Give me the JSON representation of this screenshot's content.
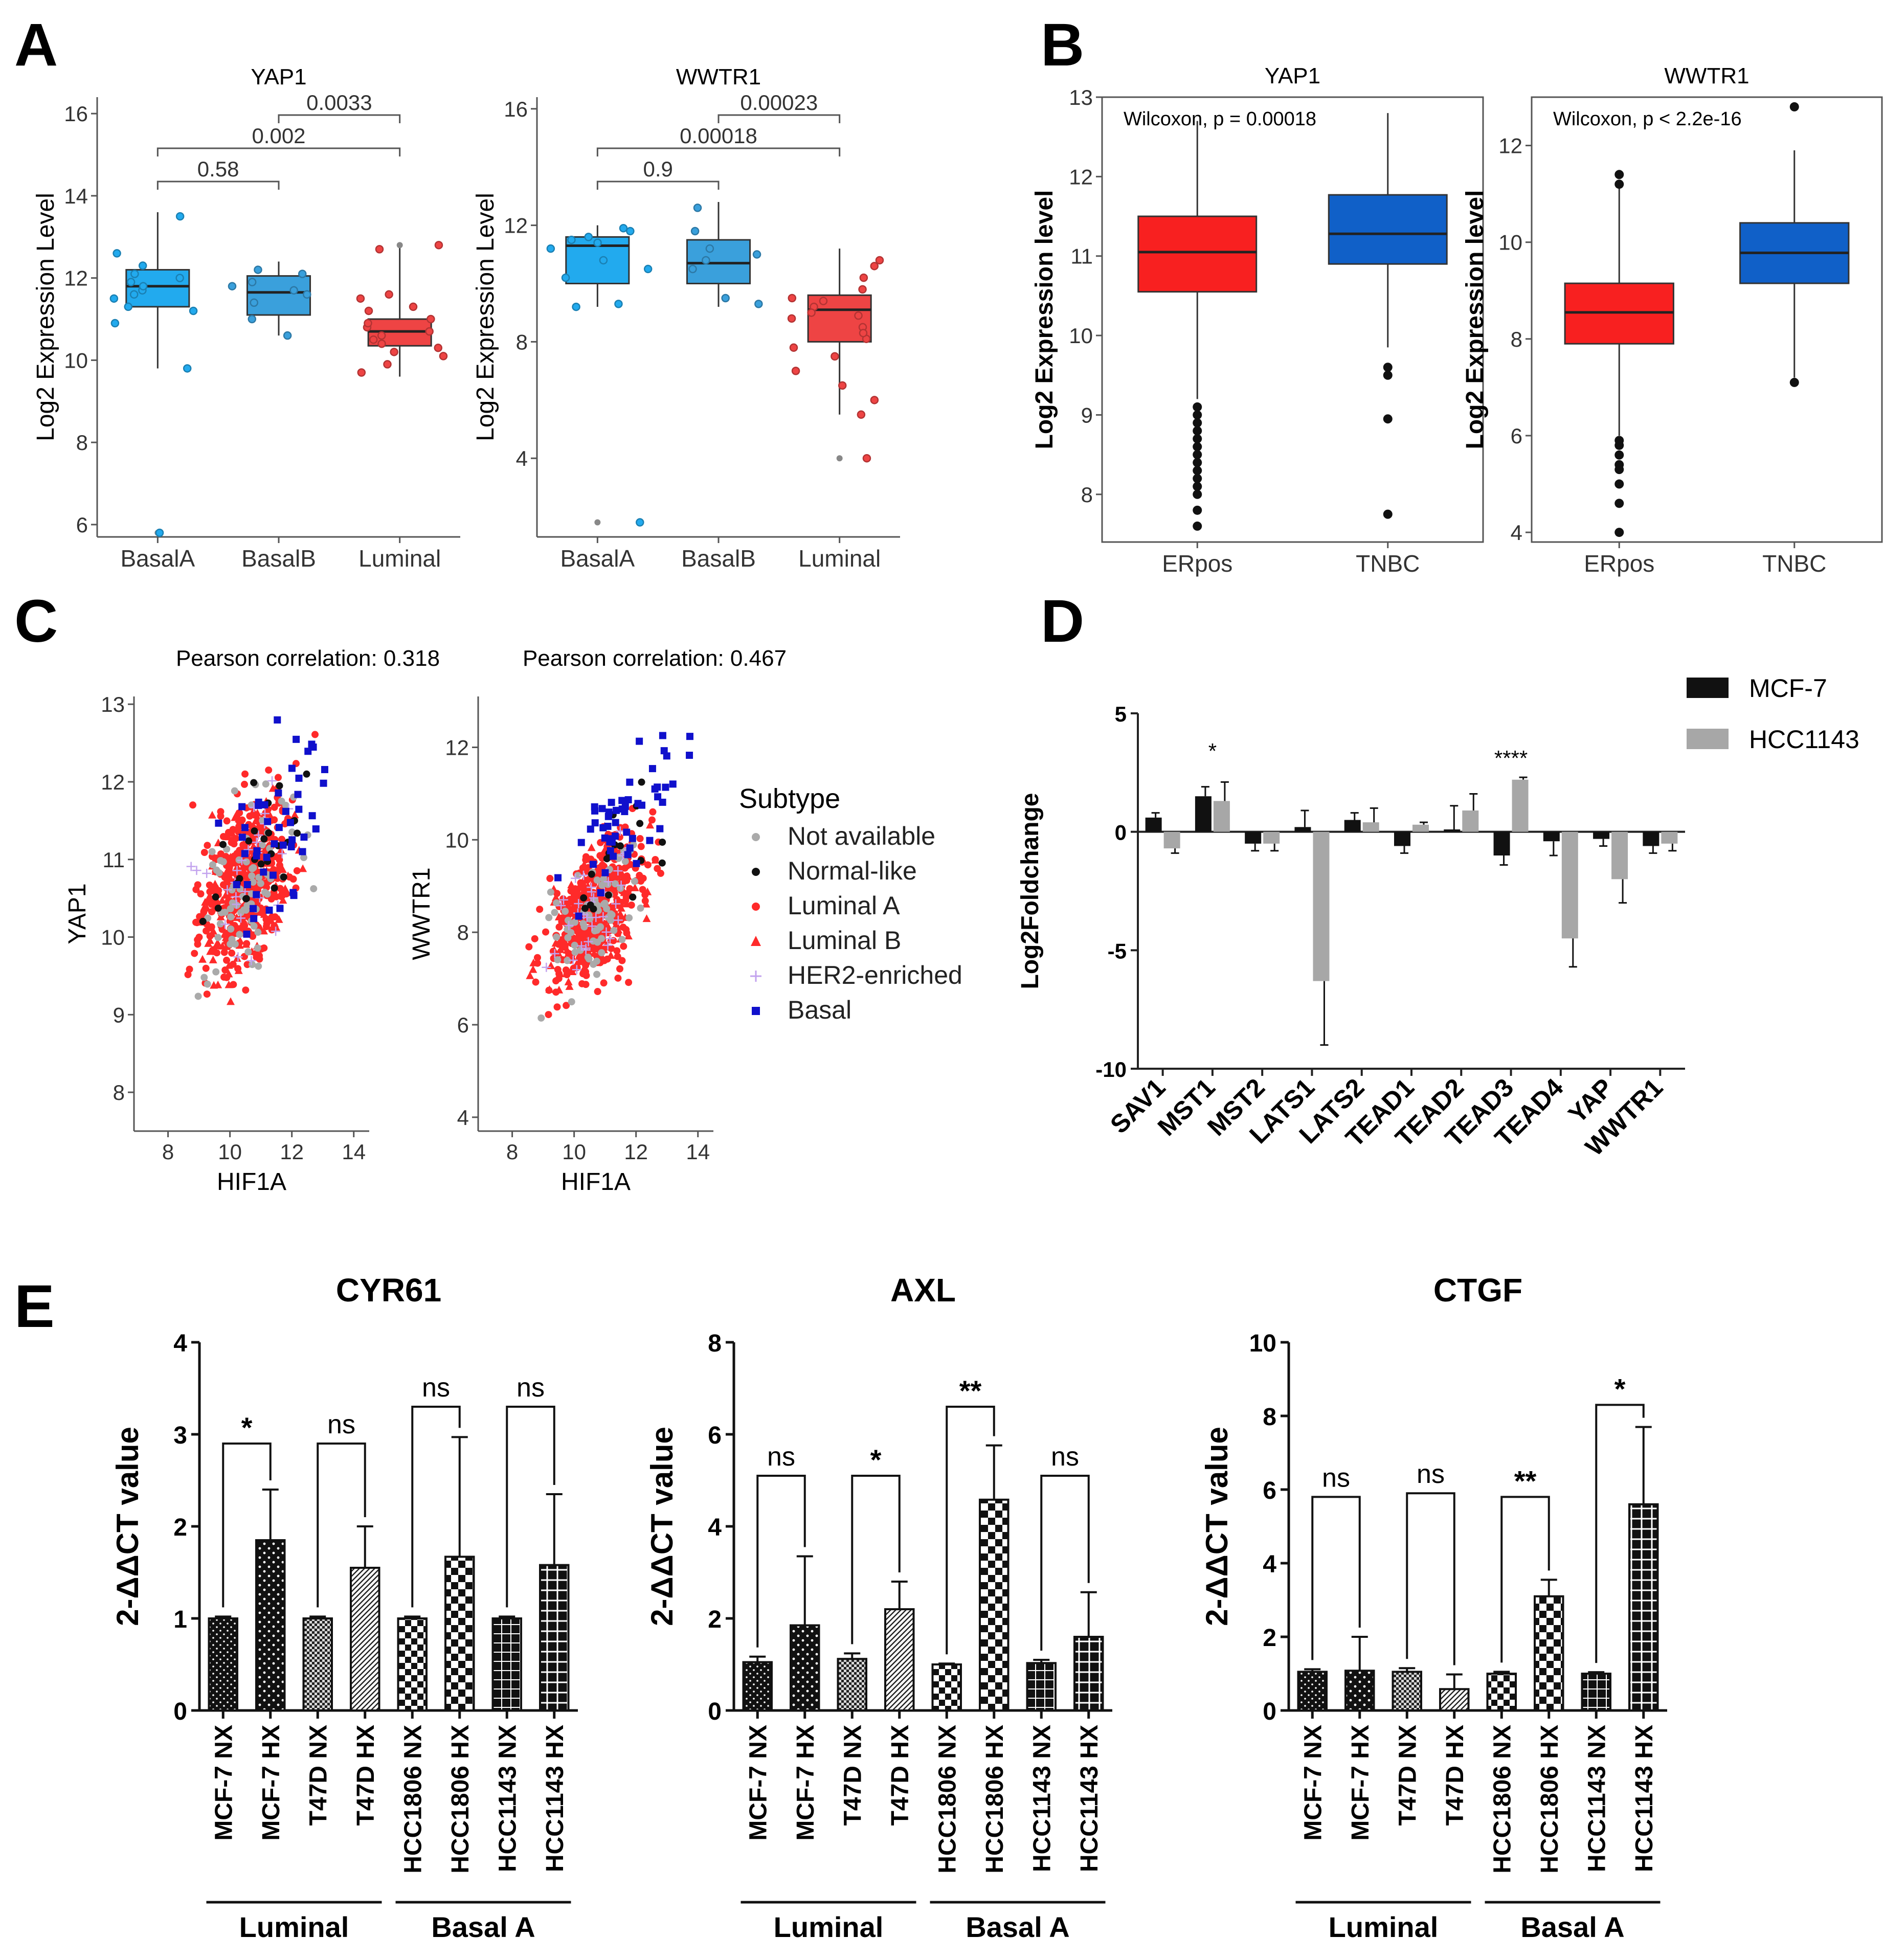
{
  "panels": {
    "a": "A",
    "b": "B",
    "c": "C",
    "d": "D",
    "e": "E"
  },
  "chart_data": [
    {
      "id": "A-YAP1",
      "type": "box",
      "title": "YAP1",
      "ylabel": "Log2 Expression Level",
      "ylim": [
        5.7,
        16.4
      ],
      "yticks": [
        6,
        8,
        10,
        12,
        14,
        16
      ],
      "categories": [
        "BasalA",
        "BasalB",
        "Luminal"
      ],
      "colors": [
        "#22aaee",
        "#3aa0dc",
        "#ee4444"
      ],
      "boxes": [
        {
          "q1": 11.3,
          "median": 11.8,
          "q3": 12.2,
          "lo": 9.8,
          "hi": 13.6
        },
        {
          "q1": 11.1,
          "median": 11.65,
          "q3": 12.05,
          "lo": 10.6,
          "hi": 12.4
        },
        {
          "q1": 10.35,
          "median": 10.7,
          "q3": 11.0,
          "lo": 9.6,
          "hi": 12.8
        }
      ],
      "points": [
        [
          11.9,
          12.1,
          11.7,
          11.5,
          12.0,
          11.2,
          10.9,
          13.5,
          12.6,
          11.3,
          9.8,
          11.6,
          11.8,
          12.3,
          5.8
        ],
        [
          11.9,
          12.1,
          11.6,
          11.4,
          11.8,
          10.6,
          11.0,
          12.2,
          11.7
        ],
        [
          10.5,
          10.8,
          11.2,
          10.2,
          9.9,
          10.6,
          11.6,
          12.8,
          10.9,
          10.7,
          10.4,
          11.5,
          9.7,
          10.3,
          11.0,
          12.7,
          10.1,
          11.3
        ]
      ],
      "outliers": [
        [
          5.8
        ],
        [],
        [
          12.8
        ]
      ],
      "comparisons": [
        {
          "a": 0,
          "b": 1,
          "label": "0.58"
        },
        {
          "a": 0,
          "b": 2,
          "label": "0.002"
        },
        {
          "a": 1,
          "b": 2,
          "label": "0.0033"
        }
      ]
    },
    {
      "id": "A-WWTR1",
      "type": "box",
      "title": "WWTR1",
      "ylabel": "Log2 Expression Level",
      "ylim": [
        1.3,
        16.4
      ],
      "yticks": [
        4,
        8,
        12,
        16
      ],
      "categories": [
        "BasalA",
        "BasalB",
        "Luminal"
      ],
      "colors": [
        "#22aaee",
        "#3aa0dc",
        "#ee4444"
      ],
      "boxes": [
        {
          "q1": 10.0,
          "median": 11.3,
          "q3": 11.6,
          "lo": 9.2,
          "hi": 12.0
        },
        {
          "q1": 10.0,
          "median": 10.7,
          "q3": 11.5,
          "lo": 9.2,
          "hi": 12.8
        },
        {
          "q1": 8.0,
          "median": 9.1,
          "q3": 9.6,
          "lo": 5.5,
          "hi": 11.2
        }
      ],
      "points": [
        [
          11.5,
          11.8,
          10.5,
          9.3,
          11.2,
          10.8,
          11.6,
          9.2,
          11.9,
          10.2,
          11.4,
          1.8
        ],
        [
          10.5,
          11.8,
          11.2,
          9.3,
          10.8,
          12.6,
          9.5,
          11.0
        ],
        [
          9.2,
          8.5,
          10.6,
          7.0,
          5.5,
          8.8,
          9.8,
          7.5,
          6.0,
          4.0,
          9.5,
          8.1,
          10.2,
          7.8,
          8.9,
          9.0,
          6.5,
          10.8,
          8.3,
          9.4
        ]
      ],
      "outliers": [
        [
          1.8
        ],
        [],
        [
          4.0
        ]
      ],
      "comparisons": [
        {
          "a": 0,
          "b": 1,
          "label": "0.9"
        },
        {
          "a": 0,
          "b": 2,
          "label": "0.00018"
        },
        {
          "a": 1,
          "b": 2,
          "label": "0.00023"
        }
      ]
    },
    {
      "id": "B-YAP1",
      "type": "box",
      "title": "YAP1",
      "annotation": "Wilcoxon, p = 0.00018",
      "ylabel": "Log2 Expression level",
      "ylim": [
        7.4,
        13.0
      ],
      "yticks": [
        8,
        9,
        10,
        11,
        12,
        13
      ],
      "categories": [
        "ERpos",
        "TNBC"
      ],
      "colors": [
        "#f82020",
        "#1060c8"
      ],
      "boxes": [
        {
          "q1": 10.55,
          "median": 11.05,
          "q3": 11.5,
          "lo": 9.2,
          "hi": 12.7
        },
        {
          "q1": 10.9,
          "median": 11.28,
          "q3": 11.77,
          "lo": 9.85,
          "hi": 12.8
        }
      ],
      "outliers": [
        [
          9.1,
          9.0,
          8.9,
          8.8,
          8.7,
          8.6,
          8.5,
          8.4,
          8.3,
          8.2,
          8.1,
          8.0,
          7.8,
          7.6
        ],
        [
          9.6,
          9.5,
          8.95,
          7.75
        ]
      ]
    },
    {
      "id": "B-WWTR1",
      "type": "box",
      "title": "WWTR1",
      "annotation": "Wilcoxon, p < 2.2e-16",
      "ylabel": "Log2 Expression level",
      "ylim": [
        3.8,
        13.0
      ],
      "yticks": [
        4,
        6,
        8,
        10,
        12
      ],
      "categories": [
        "ERpos",
        "TNBC"
      ],
      "colors": [
        "#f82020",
        "#1060c8"
      ],
      "boxes": [
        {
          "q1": 7.9,
          "median": 8.55,
          "q3": 9.15,
          "lo": 6.0,
          "hi": 11.2
        },
        {
          "q1": 9.15,
          "median": 9.78,
          "q3": 10.4,
          "lo": 7.2,
          "hi": 11.9
        }
      ],
      "outliers": [
        [
          11.4,
          11.2,
          5.9,
          5.8,
          5.6,
          5.4,
          5.3,
          5.0,
          4.6,
          4.0
        ],
        [
          12.8,
          7.1
        ]
      ]
    },
    {
      "id": "C-YAP1",
      "type": "scatter",
      "annotation": "Pearson correlation: 0.318",
      "xlabel": "HIF1A",
      "ylabel": "YAP1",
      "xlim": [
        6.9,
        14.5
      ],
      "ylim": [
        7.5,
        13.1
      ],
      "xticks": [
        8,
        10,
        12,
        14
      ],
      "yticks": [
        8,
        9,
        10,
        11,
        12,
        13
      ],
      "x_mean": 10.5,
      "y_mean": 10.7,
      "n_points": 700
    },
    {
      "id": "C-WWTR1",
      "type": "scatter",
      "annotation": "Pearson correlation: 0.467",
      "xlabel": "HIF1A",
      "ylabel": "WWTR1",
      "xlim": [
        6.9,
        14.5
      ],
      "ylim": [
        3.7,
        13.1
      ],
      "xticks": [
        8,
        10,
        12,
        14
      ],
      "yticks": [
        4,
        6,
        8,
        10,
        12
      ],
      "x_mean": 10.7,
      "y_mean": 8.5,
      "n_points": 700
    },
    {
      "id": "C-legend",
      "type": "legend",
      "title": "Subtype",
      "items": [
        {
          "label": "Not available",
          "color": "#aaaaaa",
          "shape": "circle"
        },
        {
          "label": "Normal-like",
          "color": "#111111",
          "shape": "circle"
        },
        {
          "label": "Luminal A",
          "color": "#ff2a2a",
          "shape": "circle"
        },
        {
          "label": "Luminal B",
          "color": "#ff2a2a",
          "shape": "triangle"
        },
        {
          "label": "HER2-enriched",
          "color": "#c2a2ee",
          "shape": "plus"
        },
        {
          "label": "Basal",
          "color": "#1010cc",
          "shape": "square"
        }
      ]
    },
    {
      "id": "D",
      "type": "bar",
      "ylabel": "Log2Foldchange",
      "ylim": [
        -10,
        5
      ],
      "yticks": [
        5,
        0,
        -5,
        -10
      ],
      "categories": [
        "SAV1",
        "MST1",
        "MST2",
        "LATS1",
        "LATS2",
        "TEAD1",
        "TEAD2",
        "TEAD3",
        "TEAD4",
        "YAP",
        "WWTR1"
      ],
      "series": [
        {
          "name": "MCF-7",
          "color": "#111111",
          "values": [
            0.6,
            1.5,
            -0.5,
            0.2,
            0.5,
            -0.6,
            0.1,
            -1.0,
            -0.4,
            -0.3,
            -0.6
          ],
          "errors": [
            0.2,
            0.4,
            0.3,
            0.7,
            0.3,
            0.3,
            1.0,
            0.4,
            0.6,
            0.3,
            0.3
          ]
        },
        {
          "name": "HCC1143",
          "color": "#a7a7a7",
          "values": [
            -0.7,
            1.3,
            -0.5,
            -6.3,
            0.4,
            0.3,
            0.9,
            2.2,
            -4.5,
            -2.0,
            -0.5
          ],
          "errors": [
            0.2,
            0.8,
            0.3,
            2.7,
            0.6,
            0.1,
            0.7,
            0.1,
            1.2,
            1.0,
            0.3
          ]
        }
      ],
      "significance": [
        {
          "category": "MST1",
          "label": "*"
        },
        {
          "category": "TEAD3",
          "label": "****"
        }
      ]
    },
    {
      "id": "E-CYR61",
      "type": "bar",
      "title": "CYR61",
      "ylabel": "2-ΔΔCT value",
      "ylim": [
        0,
        4
      ],
      "yticks": [
        0,
        1,
        2,
        3,
        4
      ],
      "categories": [
        "MCF-7 NX",
        "MCF-7 HX",
        "T47D NX",
        "T47D HX",
        "HCC1806 NX",
        "HCC1806 HX",
        "HCC1143 NX",
        "HCC1143 HX"
      ],
      "values": [
        1.0,
        1.85,
        1.0,
        1.55,
        1.0,
        1.67,
        1.0,
        1.58
      ],
      "errors": [
        0.02,
        0.55,
        0.02,
        0.45,
        0.02,
        1.3,
        0.02,
        0.77
      ],
      "comparisons": [
        {
          "a": 0,
          "b": 1,
          "label": "*",
          "level": 2.9
        },
        {
          "a": 2,
          "b": 3,
          "label": "ns",
          "level": 2.9
        },
        {
          "a": 4,
          "b": 5,
          "label": "ns",
          "level": 3.3
        },
        {
          "a": 6,
          "b": 7,
          "label": "ns",
          "level": 3.3
        }
      ],
      "groups": [
        {
          "label": "Luminal",
          "from": 0,
          "to": 3
        },
        {
          "label": "Basal A",
          "from": 4,
          "to": 7
        }
      ]
    },
    {
      "id": "E-AXL",
      "type": "bar",
      "title": "AXL",
      "ylabel": "2-ΔΔCT value",
      "ylim": [
        0,
        8
      ],
      "yticks": [
        0,
        2,
        4,
        6,
        8
      ],
      "categories": [
        "MCF-7 NX",
        "MCF-7 HX",
        "T47D NX",
        "T47D HX",
        "HCC1806 NX",
        "HCC1806 HX",
        "HCC1143 NX",
        "HCC1143 HX"
      ],
      "values": [
        1.05,
        1.85,
        1.12,
        2.2,
        1.0,
        4.58,
        1.03,
        1.6
      ],
      "errors": [
        0.12,
        1.5,
        0.12,
        0.6,
        0.02,
        1.18,
        0.07,
        0.97
      ],
      "comparisons": [
        {
          "a": 0,
          "b": 1,
          "label": "ns",
          "level": 5.1
        },
        {
          "a": 2,
          "b": 3,
          "label": "*",
          "level": 5.1
        },
        {
          "a": 4,
          "b": 5,
          "label": "**",
          "level": 6.6
        },
        {
          "a": 6,
          "b": 7,
          "label": "ns",
          "level": 5.1
        }
      ],
      "groups": [
        {
          "label": "Luminal",
          "from": 0,
          "to": 3
        },
        {
          "label": "Basal A",
          "from": 4,
          "to": 7
        }
      ]
    },
    {
      "id": "E-CTGF",
      "type": "bar",
      "title": "CTGF",
      "ylabel": "2-ΔΔCT value",
      "ylim": [
        0,
        10
      ],
      "yticks": [
        0,
        2,
        4,
        6,
        8,
        10
      ],
      "categories": [
        "MCF-7 NX",
        "MCF-7 HX",
        "T47D NX",
        "T47D HX",
        "HCC1806 NX",
        "HCC1806 HX",
        "HCC1143 NX",
        "HCC1143 HX"
      ],
      "values": [
        1.05,
        1.08,
        1.05,
        0.58,
        1.0,
        3.1,
        1.0,
        5.6
      ],
      "errors": [
        0.07,
        0.92,
        0.1,
        0.4,
        0.05,
        0.45,
        0.04,
        2.1
      ],
      "comparisons": [
        {
          "a": 0,
          "b": 1,
          "label": "ns",
          "level": 5.8
        },
        {
          "a": 2,
          "b": 3,
          "label": "ns",
          "level": 5.9
        },
        {
          "a": 4,
          "b": 5,
          "label": "**",
          "level": 5.8
        },
        {
          "a": 6,
          "b": 7,
          "label": "*",
          "level": 8.3
        }
      ],
      "groups": [
        {
          "label": "Luminal",
          "from": 0,
          "to": 3
        },
        {
          "label": "Basal A",
          "from": 4,
          "to": 7
        }
      ]
    }
  ]
}
